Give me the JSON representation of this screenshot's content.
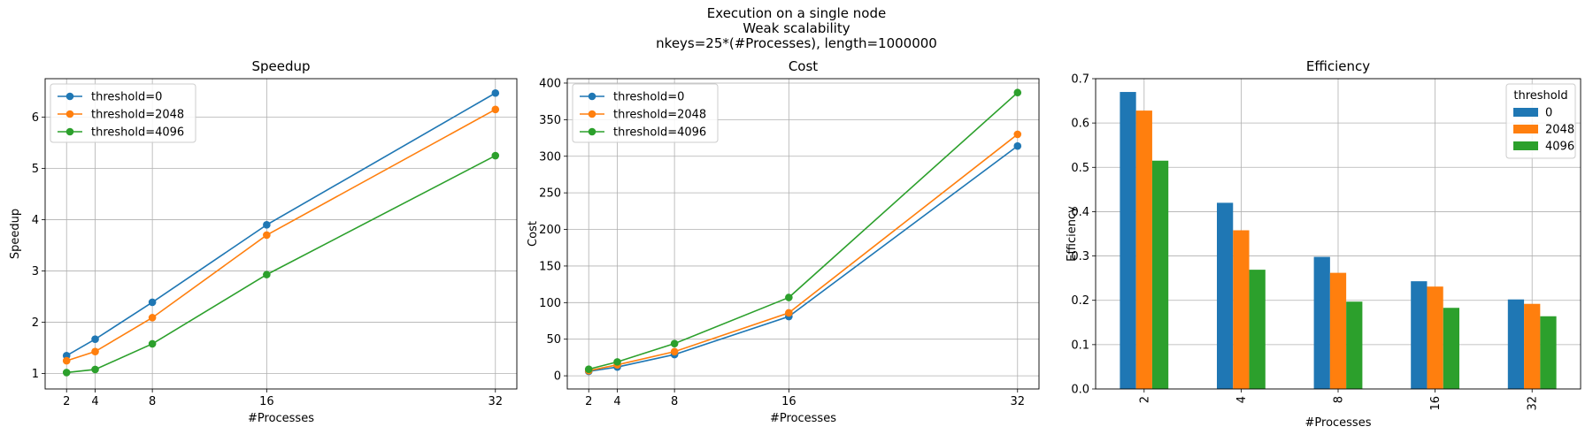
{
  "suptitle": {
    "line1": "Execution on a single node",
    "line2": "Weak scalability",
    "line3": "nkeys=25*(#Processes), length=1000000"
  },
  "colors": {
    "blue": "#1f77b4",
    "orange": "#ff7f0e",
    "green": "#2ca02c",
    "grid": "#b0b0b0"
  },
  "chart_data": [
    {
      "type": "line",
      "title": "Speedup",
      "xlabel": "#Processes",
      "ylabel": "Speedup",
      "x": [
        2,
        4,
        8,
        16,
        32
      ],
      "xlim": [
        0.5,
        33.5
      ],
      "ylim": [
        0.7,
        6.75
      ],
      "xticks": [
        "2",
        "4",
        "8",
        "16",
        "32"
      ],
      "yticks": [
        "1",
        "2",
        "3",
        "4",
        "5",
        "6"
      ],
      "grid": true,
      "legend": "upper-left",
      "series": [
        {
          "name": "threshold=0",
          "color": "#1f77b4",
          "values": [
            1.35,
            1.67,
            2.39,
            3.9,
            6.47
          ]
        },
        {
          "name": "threshold=2048",
          "color": "#ff7f0e",
          "values": [
            1.25,
            1.43,
            2.09,
            3.7,
            6.15
          ]
        },
        {
          "name": "threshold=4096",
          "color": "#2ca02c",
          "values": [
            1.02,
            1.08,
            1.58,
            2.93,
            5.25
          ]
        }
      ]
    },
    {
      "type": "line",
      "title": "Cost",
      "xlabel": "#Processes",
      "ylabel": "Cost",
      "x": [
        2,
        4,
        8,
        16,
        32
      ],
      "xlim": [
        0.5,
        33.5
      ],
      "ylim": [
        -18,
        406
      ],
      "xticks": [
        "2",
        "4",
        "8",
        "16",
        "32"
      ],
      "yticks": [
        "0",
        "50",
        "100",
        "150",
        "200",
        "250",
        "300",
        "350",
        "400"
      ],
      "grid": true,
      "legend": "upper-left",
      "series": [
        {
          "name": "threshold=0",
          "color": "#1f77b4",
          "values": [
            6,
            12,
            29,
            81,
            314
          ]
        },
        {
          "name": "threshold=2048",
          "color": "#ff7f0e",
          "values": [
            7,
            15,
            33,
            86,
            330
          ]
        },
        {
          "name": "threshold=4096",
          "color": "#2ca02c",
          "values": [
            9,
            19,
            44,
            107,
            387
          ]
        }
      ]
    },
    {
      "type": "bar",
      "title": "Efficiency",
      "xlabel": "#Processes",
      "ylabel": "Efficiency",
      "categories": [
        "2",
        "4",
        "8",
        "16",
        "32"
      ],
      "ylim": [
        0,
        0.7
      ],
      "yticks": [
        "0.0",
        "0.1",
        "0.2",
        "0.3",
        "0.4",
        "0.5",
        "0.6",
        "0.7"
      ],
      "grid": true,
      "legend": "upper-right",
      "legend_title": "threshold",
      "series": [
        {
          "name": "0",
          "color": "#1f77b4",
          "values": [
            0.67,
            0.42,
            0.298,
            0.243,
            0.202
          ]
        },
        {
          "name": "2048",
          "color": "#ff7f0e",
          "values": [
            0.628,
            0.358,
            0.262,
            0.231,
            0.192
          ]
        },
        {
          "name": "4096",
          "color": "#2ca02c",
          "values": [
            0.515,
            0.269,
            0.197,
            0.183,
            0.164
          ]
        }
      ]
    }
  ]
}
